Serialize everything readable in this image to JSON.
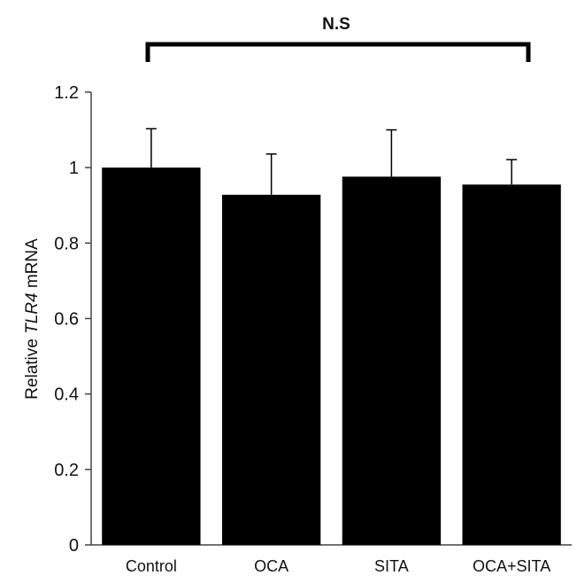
{
  "chart_data": {
    "type": "bar",
    "categories": [
      "Control",
      "OCA",
      "SITA",
      "OCA+SITA"
    ],
    "values": [
      1.0,
      0.928,
      0.976,
      0.955
    ],
    "errors": [
      0.103,
      0.108,
      0.124,
      0.066
    ],
    "ylabel_parts": [
      "Relative ",
      "TLR4",
      " mRNA"
    ],
    "ylim": [
      0,
      1.2
    ],
    "yticks": [
      0,
      0.2,
      0.4,
      0.6,
      0.8,
      1,
      1.2
    ],
    "ytick_labels": [
      "0",
      "0.2",
      "0.4",
      "0.6",
      "0.8",
      "1",
      "1.2"
    ],
    "annotation": "N.S",
    "grid": false,
    "legend": "none"
  },
  "colors": {
    "bar": "#000000",
    "axis": "#444444",
    "text": "#111111"
  }
}
